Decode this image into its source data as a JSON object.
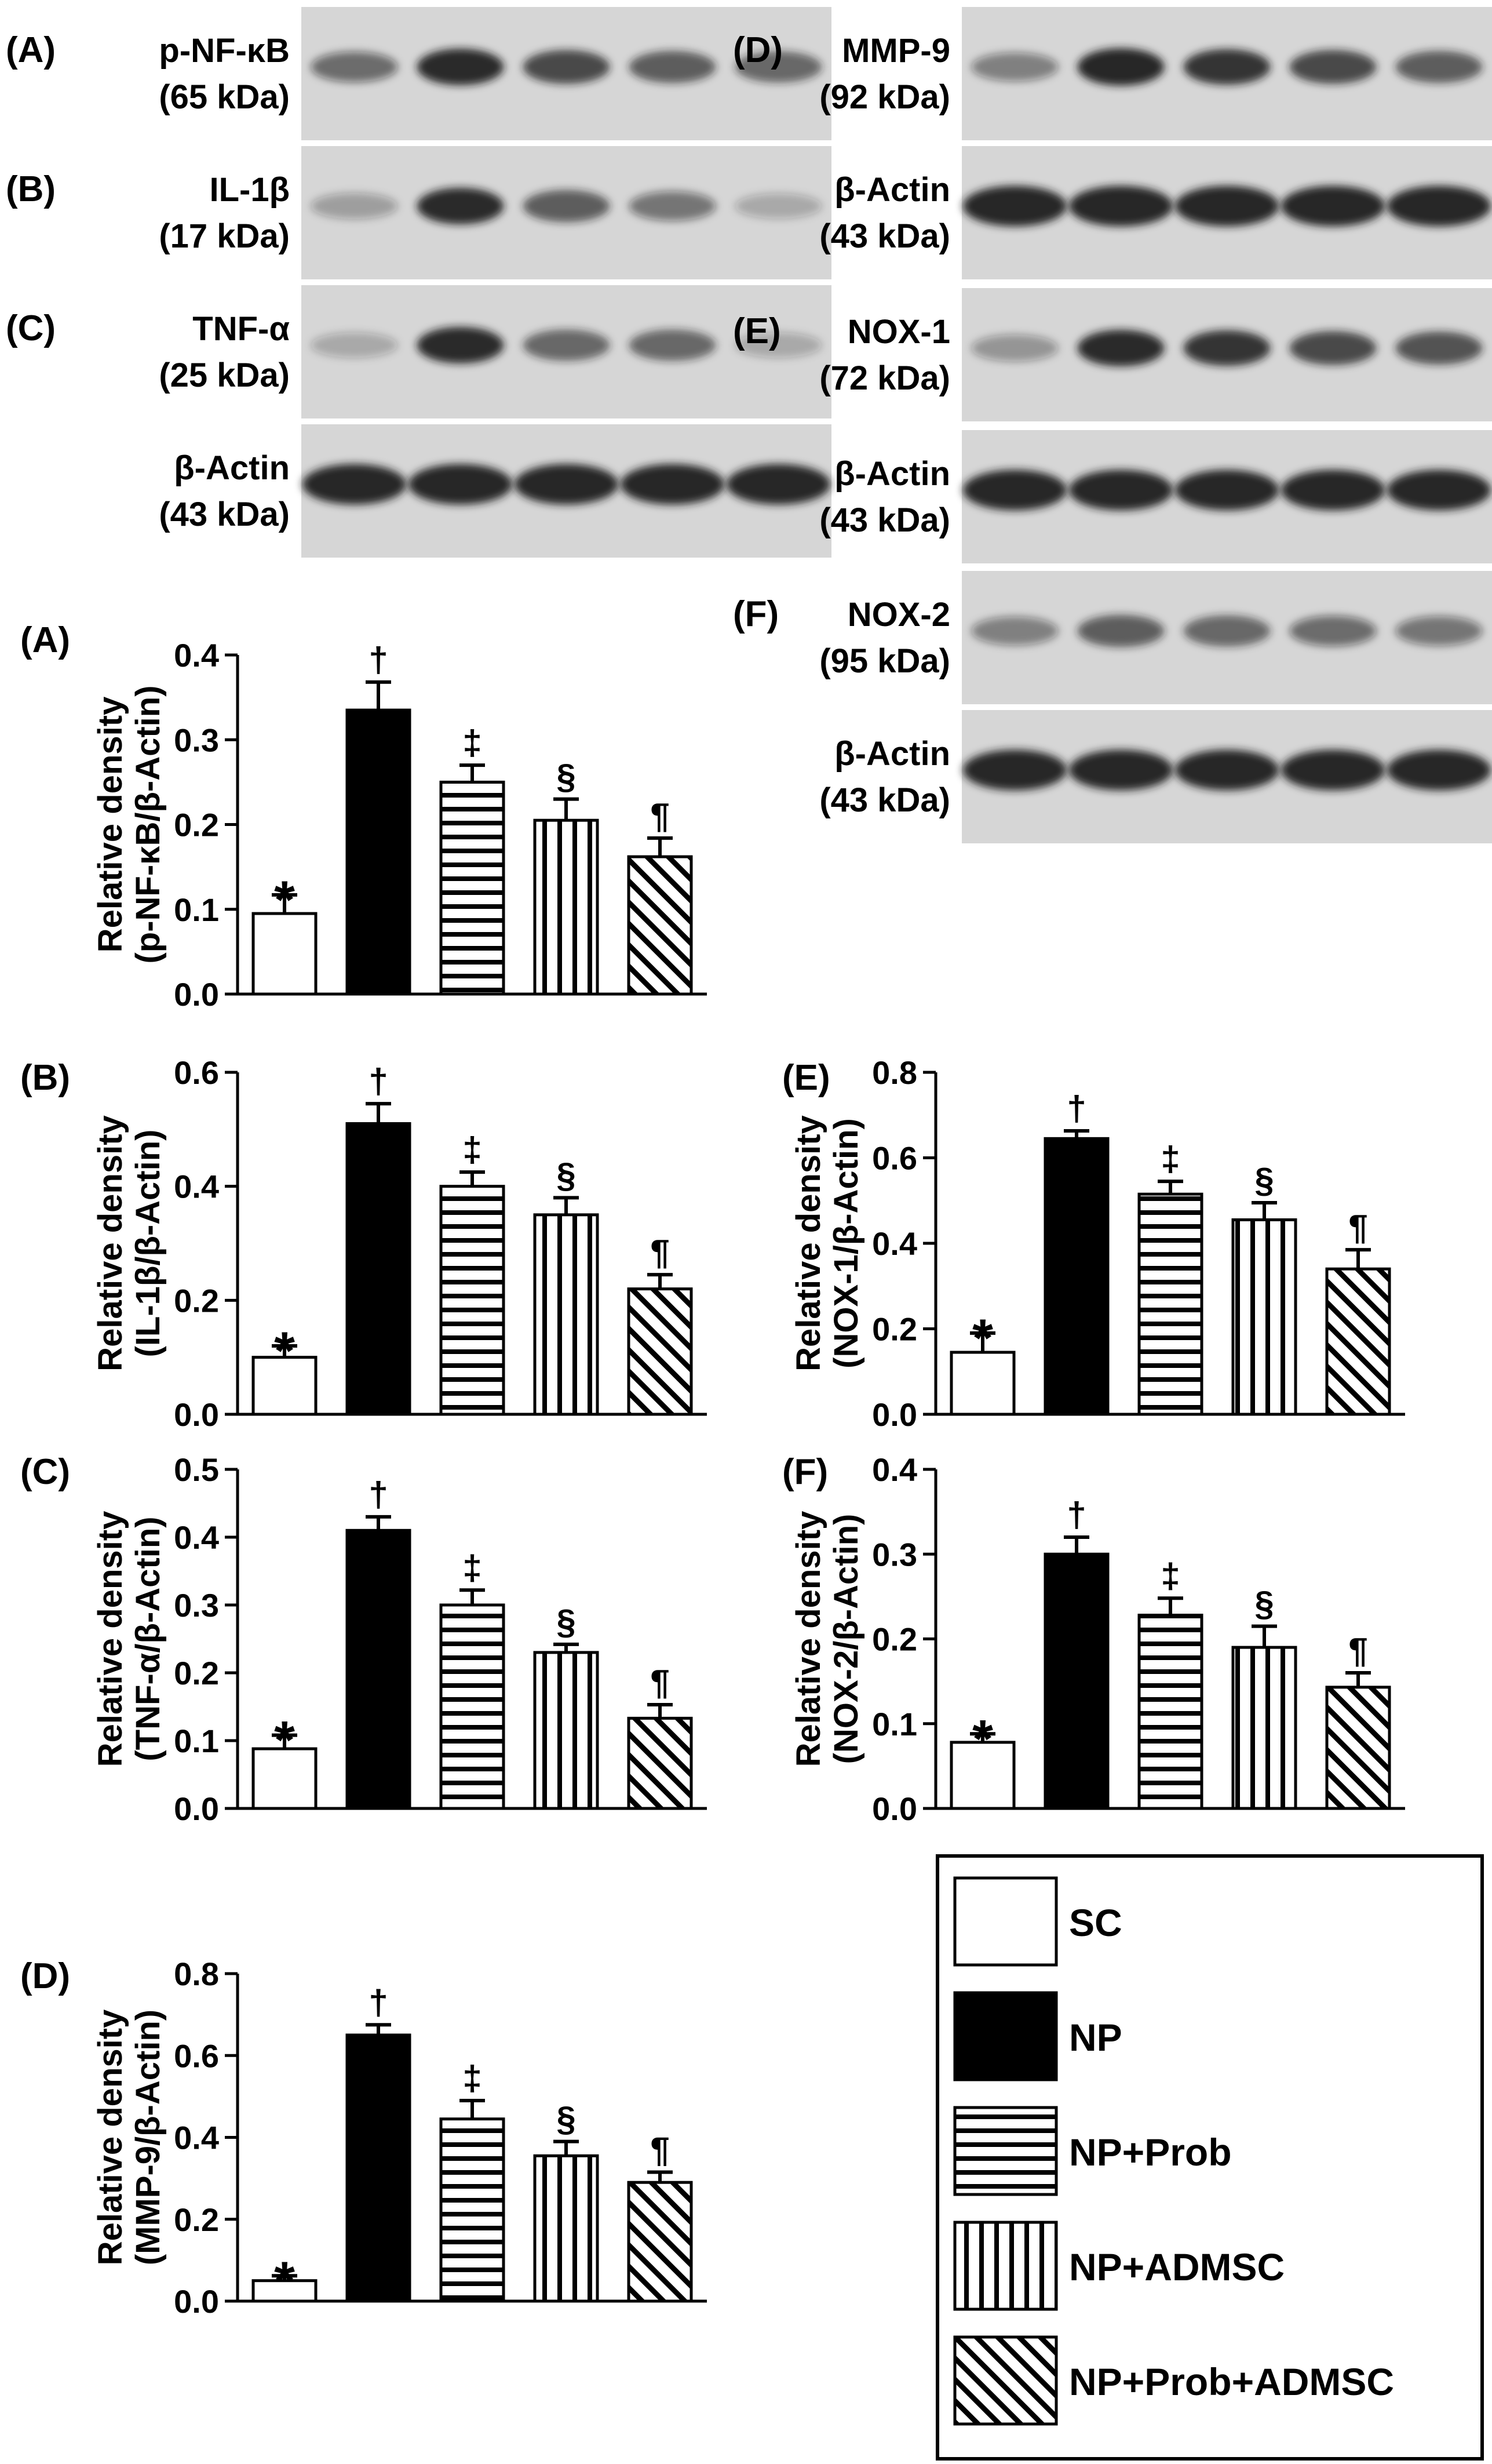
{
  "groups": [
    "SC",
    "NP",
    "NP+Prob",
    "NP+ADMSC",
    "NP+Prob+ADMSC"
  ],
  "colors": {
    "background": "#ffffff",
    "ink": "#000000",
    "blot_bg": "#d6d6d6",
    "band": "#1a1a1a"
  },
  "blots": [
    {
      "letter": "(A)",
      "name": "p-NF-κB",
      "size": "(65 kDa)",
      "band_intensity": [
        0.55,
        0.9,
        0.75,
        0.65,
        0.6
      ]
    },
    {
      "letter": "(B)",
      "name": "IL-1β",
      "size": "(17 kDa)",
      "band_intensity": [
        0.3,
        0.9,
        0.65,
        0.5,
        0.25
      ]
    },
    {
      "letter": "(C)",
      "name": "TNF-α",
      "size": "(25 kDa)",
      "band_intensity": [
        0.25,
        0.9,
        0.6,
        0.6,
        0.25
      ]
    },
    {
      "letter": "",
      "name": "β-Actin",
      "size": "(43 kDa)",
      "band_intensity": [
        0.95,
        0.95,
        0.95,
        0.95,
        0.95
      ]
    },
    {
      "letter": "(D)",
      "name": "MMP-9",
      "size": "(92 kDa)",
      "band_intensity": [
        0.45,
        0.95,
        0.85,
        0.75,
        0.65
      ]
    },
    {
      "letter": "",
      "name": "β-Actin",
      "size": "(43 kDa)",
      "band_intensity": [
        0.95,
        0.95,
        0.95,
        0.95,
        0.95
      ]
    },
    {
      "letter": "(E)",
      "name": "NOX-1",
      "size": "(72 kDa)",
      "band_intensity": [
        0.35,
        0.9,
        0.85,
        0.75,
        0.7
      ]
    },
    {
      "letter": "",
      "name": "β-Actin",
      "size": "(43 kDa)",
      "band_intensity": [
        0.95,
        0.95,
        0.95,
        0.95,
        0.95
      ]
    },
    {
      "letter": "(F)",
      "name": "NOX-2",
      "size": "(95 kDa)",
      "band_intensity": [
        0.45,
        0.65,
        0.6,
        0.55,
        0.5
      ]
    },
    {
      "letter": "",
      "name": "β-Actin",
      "size": "(43 kDa)",
      "band_intensity": [
        0.95,
        0.95,
        0.95,
        0.95,
        0.95
      ]
    }
  ],
  "chart_data": [
    {
      "type": "bar",
      "letter": "(A)",
      "ylabel1": "Relative density",
      "ylabel2": "(p-NF-κB/β-Actin)",
      "ylim": [
        0,
        0.4
      ],
      "yticks": [
        "0.0",
        "0.1",
        "0.2",
        "0.3",
        "0.4"
      ],
      "categories": [
        "SC",
        "NP",
        "NP+Prob",
        "NP+ADMSC",
        "NP+Prob+ADMSC"
      ],
      "values": [
        0.095,
        0.335,
        0.25,
        0.205,
        0.162
      ],
      "errors": [
        0.022,
        0.033,
        0.02,
        0.025,
        0.022
      ],
      "markers": [
        "*",
        "†",
        "‡",
        "§",
        "¶"
      ]
    },
    {
      "type": "bar",
      "letter": "(B)",
      "ylabel1": "Relative density",
      "ylabel2": "(IL-1β/β-Actin)",
      "ylim": [
        0,
        0.6
      ],
      "yticks": [
        "0.0",
        "0.2",
        "0.4",
        "0.6"
      ],
      "categories": [
        "SC",
        "NP",
        "NP+Prob",
        "NP+ADMSC",
        "NP+Prob+ADMSC"
      ],
      "values": [
        0.1,
        0.51,
        0.4,
        0.35,
        0.22
      ],
      "errors": [
        0.02,
        0.035,
        0.025,
        0.03,
        0.025
      ],
      "markers": [
        "*",
        "†",
        "‡",
        "§",
        "¶"
      ]
    },
    {
      "type": "bar",
      "letter": "(C)",
      "ylabel1": "Relative density",
      "ylabel2": "(TNF-α/β-Actin)",
      "ylim": [
        0,
        0.5
      ],
      "yticks": [
        "0.0",
        "0.1",
        "0.2",
        "0.3",
        "0.4",
        "0.5"
      ],
      "categories": [
        "SC",
        "NP",
        "NP+Prob",
        "NP+ADMSC",
        "NP+Prob+ADMSC"
      ],
      "values": [
        0.088,
        0.41,
        0.3,
        0.23,
        0.133
      ],
      "errors": [
        0.02,
        0.02,
        0.022,
        0.012,
        0.02
      ],
      "markers": [
        "*",
        "†",
        "‡",
        "§",
        "¶"
      ]
    },
    {
      "type": "bar",
      "letter": "(D)",
      "ylabel1": "Relative density",
      "ylabel2": "(MMP-9/β-Actin)",
      "ylim": [
        0,
        0.8
      ],
      "yticks": [
        "0.0",
        "0.2",
        "0.4",
        "0.6",
        "0.8"
      ],
      "categories": [
        "SC",
        "NP",
        "NP+Prob",
        "NP+ADMSC",
        "NP+Prob+ADMSC"
      ],
      "values": [
        0.05,
        0.65,
        0.445,
        0.355,
        0.29
      ],
      "errors": [
        0.012,
        0.025,
        0.045,
        0.035,
        0.025
      ],
      "markers": [
        "*",
        "†",
        "‡",
        "§",
        "¶"
      ]
    },
    {
      "type": "bar",
      "letter": "(E)",
      "ylabel1": "Relative density",
      "ylabel2": "(NOX-1/β-Actin)",
      "ylim": [
        0,
        0.8
      ],
      "yticks": [
        "0.0",
        "0.2",
        "0.4",
        "0.6",
        "0.8"
      ],
      "categories": [
        "SC",
        "NP",
        "NP+Prob",
        "NP+ADMSC",
        "NP+Prob+ADMSC"
      ],
      "values": [
        0.145,
        0.645,
        0.515,
        0.455,
        0.34
      ],
      "errors": [
        0.045,
        0.018,
        0.03,
        0.04,
        0.045
      ],
      "markers": [
        "*",
        "†",
        "‡",
        "§",
        "¶"
      ]
    },
    {
      "type": "bar",
      "letter": "(F)",
      "ylabel1": "Relative density",
      "ylabel2": "(NOX-2/β-Actin)",
      "ylim": [
        0,
        0.4
      ],
      "yticks": [
        "0.0",
        "0.1",
        "0.2",
        "0.3",
        "0.4"
      ],
      "categories": [
        "SC",
        "NP",
        "NP+Prob",
        "NP+ADMSC",
        "NP+Prob+ADMSC"
      ],
      "values": [
        0.078,
        0.3,
        0.228,
        0.19,
        0.143
      ],
      "errors": [
        0.01,
        0.02,
        0.02,
        0.025,
        0.017
      ],
      "markers": [
        "*",
        "†",
        "‡",
        "§",
        "¶"
      ]
    }
  ],
  "legend": {
    "entries": [
      {
        "label": "SC",
        "pattern": "white"
      },
      {
        "label": "NP",
        "pattern": "black"
      },
      {
        "label": "NP+Prob",
        "pattern": "horizontal"
      },
      {
        "label": "NP+ADMSC",
        "pattern": "vertical"
      },
      {
        "label": "NP+Prob+ADMSC",
        "pattern": "diagonal"
      }
    ]
  }
}
